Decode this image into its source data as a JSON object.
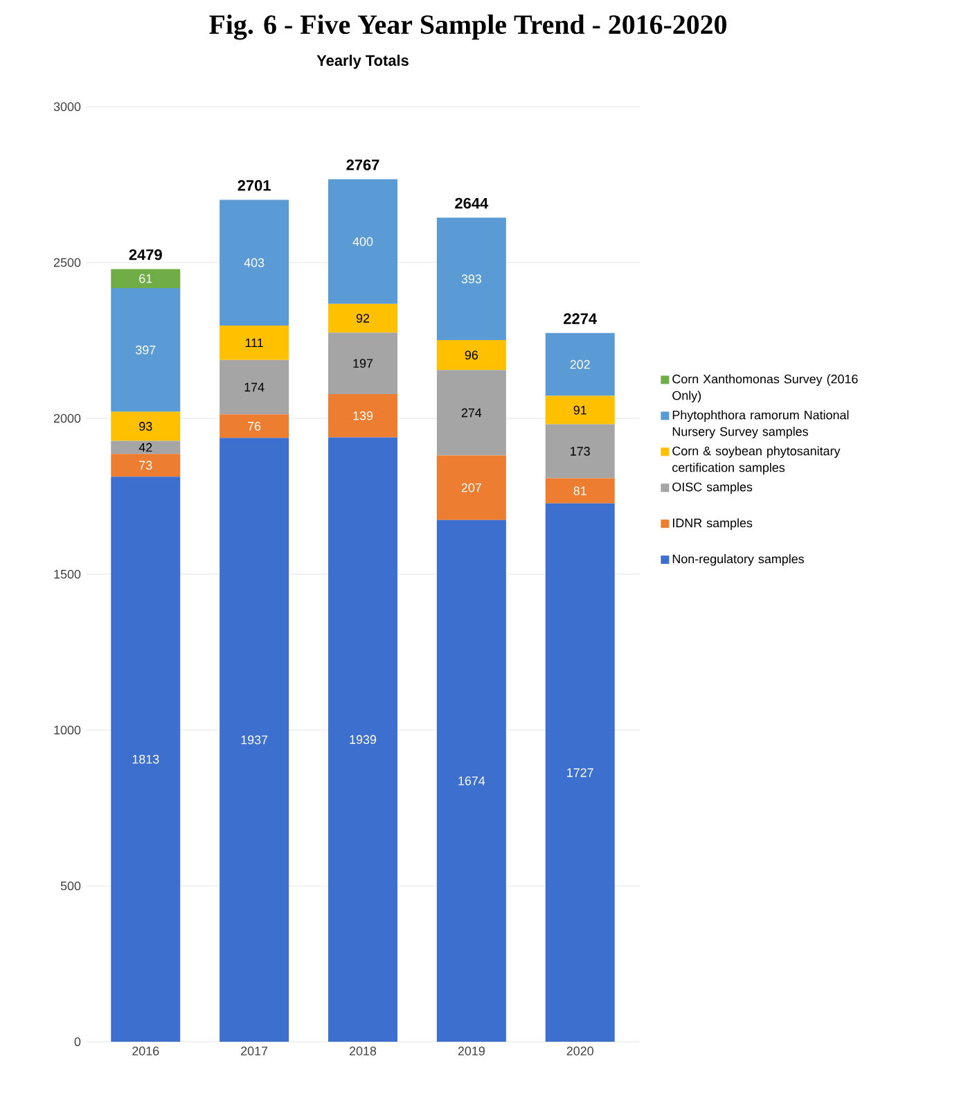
{
  "chart_data": {
    "type": "bar",
    "title": "Fig. 6 - Five Year Sample Trend - 2016-2020",
    "subtitle": "Yearly Totals",
    "stacked": true,
    "data_labels": true,
    "grid": "y",
    "legend": "right",
    "categories": [
      "2016",
      "2017",
      "2018",
      "2019",
      "2020"
    ],
    "ylim": [
      0,
      3000
    ],
    "yticks": [
      0,
      500,
      1000,
      1500,
      2000,
      2500,
      3000
    ],
    "series": [
      {
        "name": "Non-regulatory samples",
        "color": "#3d6fcf",
        "values": [
          1813,
          1937,
          1939,
          1674,
          1727
        ]
      },
      {
        "name": "IDNR samples",
        "color": "#ed7d31",
        "values": [
          73,
          76,
          139,
          207,
          81
        ]
      },
      {
        "name": "OISC samples",
        "color": "#a5a5a5",
        "values": [
          42,
          174,
          197,
          274,
          173
        ]
      },
      {
        "name": "Corn & soybean phytosanitary certification samples",
        "color": "#ffc000",
        "values": [
          93,
          111,
          92,
          96,
          91
        ]
      },
      {
        "name": "Phytophthora ramorum National Nursery Survey samples",
        "color": "#5b9bd5",
        "values": [
          397,
          403,
          400,
          393,
          202
        ]
      },
      {
        "name": "Corn Xanthomonas Survey (2016 Only)",
        "color": "#70ad47",
        "values": [
          61,
          null,
          null,
          null,
          null
        ]
      }
    ],
    "totals": [
      "2479",
      "2701",
      "2767",
      "2644",
      "2274"
    ]
  }
}
